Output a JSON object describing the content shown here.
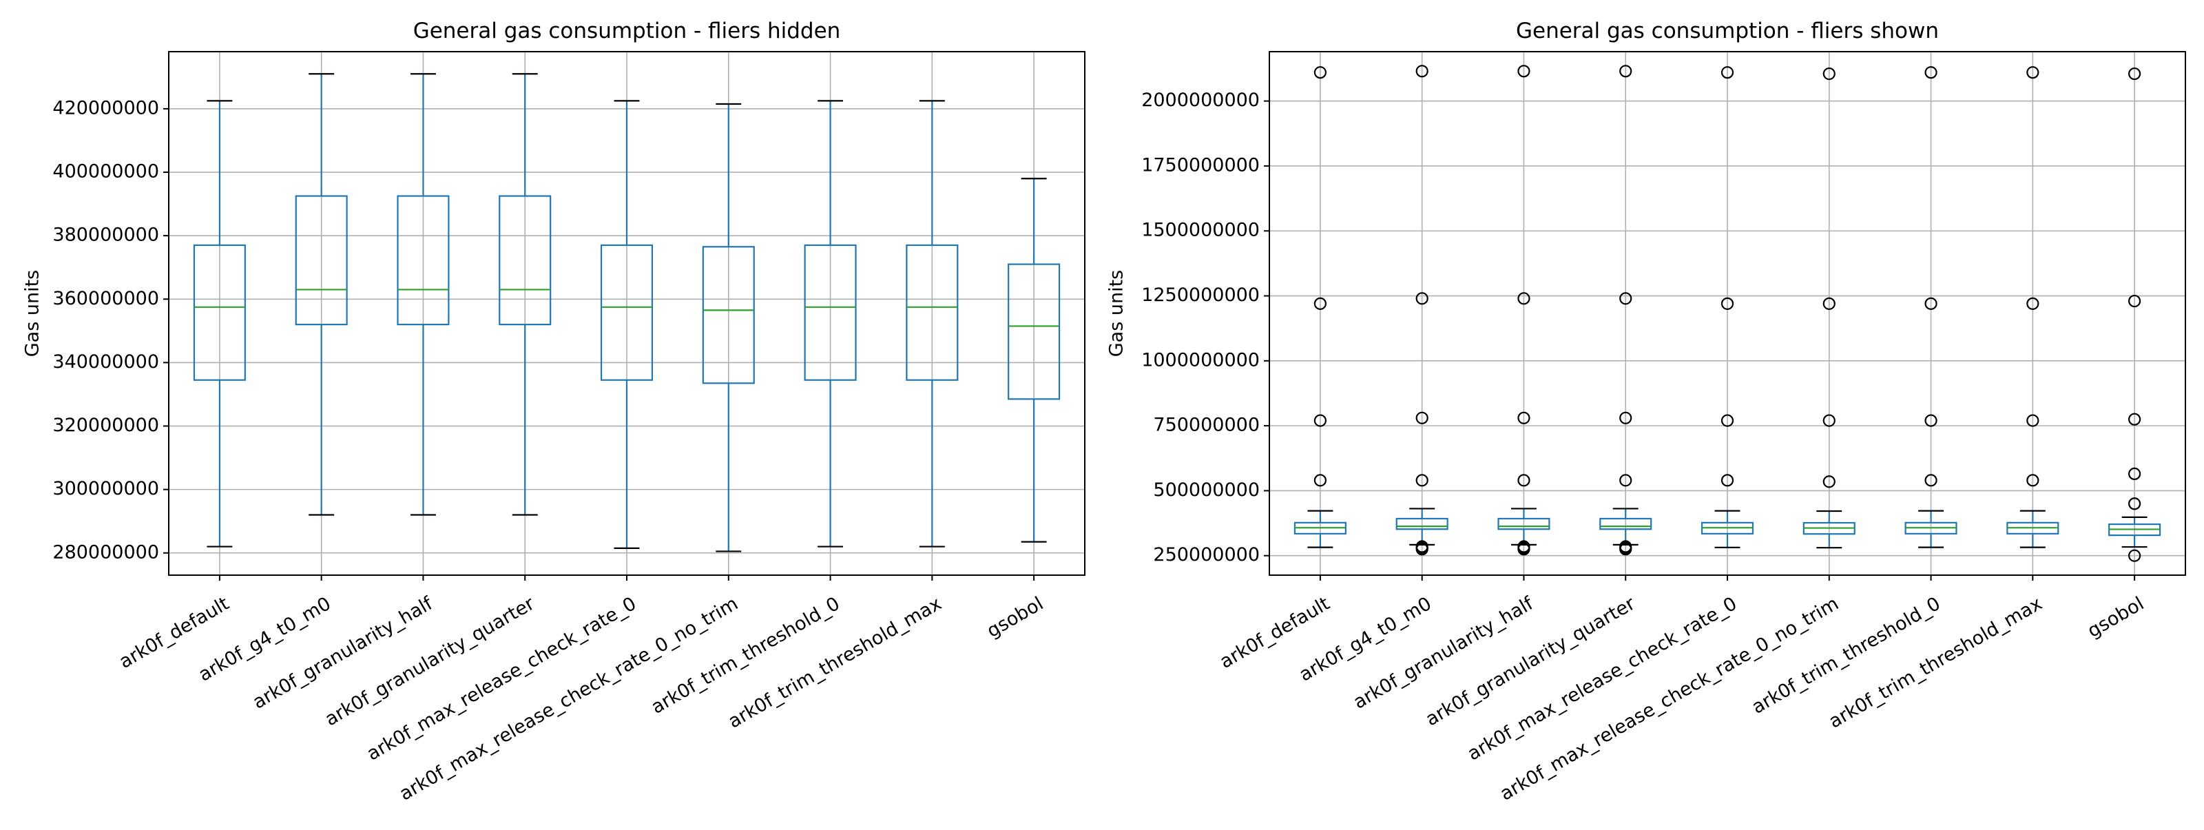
{
  "colors": {
    "box": "#1f77b4",
    "median": "#2ca02c",
    "whisker_cap": "#000000",
    "grid": "#b0b0b0",
    "axes": "#000000"
  },
  "chart_data": [
    {
      "type": "boxplot",
      "title": "General gas consumption - fliers hidden",
      "xlabel": "",
      "ylabel": "Gas units",
      "grid": true,
      "fliers_shown": false,
      "ylim": [
        273000000,
        438000000
      ],
      "yticks": [
        280000000,
        300000000,
        320000000,
        340000000,
        360000000,
        380000000,
        400000000,
        420000000
      ],
      "ytick_labels": [
        "280000000",
        "300000000",
        "320000000",
        "340000000",
        "360000000",
        "380000000",
        "400000000",
        "420000000"
      ],
      "categories": [
        "ark0f_default",
        "ark0f_g4_t0_m0",
        "ark0f_granularity_half",
        "ark0f_granularity_quarter",
        "ark0f_max_release_check_rate_0",
        "ark0f_max_release_check_rate_0_no_trim",
        "ark0f_trim_threshold_0",
        "ark0f_trim_threshold_max",
        "gsobol"
      ],
      "boxes": [
        {
          "whislo": 282000000,
          "q1": 334500000,
          "med": 357500000,
          "q3": 377000000,
          "whishi": 422500000,
          "fliers": []
        },
        {
          "whislo": 292000000,
          "q1": 352000000,
          "med": 363000000,
          "q3": 392500000,
          "whishi": 431000000,
          "fliers": []
        },
        {
          "whislo": 292000000,
          "q1": 352000000,
          "med": 363000000,
          "q3": 392500000,
          "whishi": 431000000,
          "fliers": []
        },
        {
          "whislo": 292000000,
          "q1": 352000000,
          "med": 363000000,
          "q3": 392500000,
          "whishi": 431000000,
          "fliers": []
        },
        {
          "whislo": 281500000,
          "q1": 334500000,
          "med": 357500000,
          "q3": 377000000,
          "whishi": 422500000,
          "fliers": []
        },
        {
          "whislo": 280500000,
          "q1": 333500000,
          "med": 356500000,
          "q3": 376500000,
          "whishi": 421500000,
          "fliers": []
        },
        {
          "whislo": 282000000,
          "q1": 334500000,
          "med": 357500000,
          "q3": 377000000,
          "whishi": 422500000,
          "fliers": []
        },
        {
          "whislo": 282000000,
          "q1": 334500000,
          "med": 357500000,
          "q3": 377000000,
          "whishi": 422500000,
          "fliers": []
        },
        {
          "whislo": 283500000,
          "q1": 328500000,
          "med": 351500000,
          "q3": 371000000,
          "whishi": 398000000,
          "fliers": []
        }
      ]
    },
    {
      "type": "boxplot",
      "title": "General gas consumption - fliers shown",
      "xlabel": "",
      "ylabel": "Gas units",
      "grid": true,
      "fliers_shown": true,
      "ylim": [
        175000000,
        2190000000
      ],
      "yticks": [
        250000000,
        500000000,
        750000000,
        1000000000,
        1250000000,
        1500000000,
        1750000000,
        2000000000
      ],
      "ytick_labels": [
        "250000000",
        "500000000",
        "750000000",
        "1000000000",
        "1250000000",
        "1500000000",
        "1750000000",
        "2000000000"
      ],
      "categories": [
        "ark0f_default",
        "ark0f_g4_t0_m0",
        "ark0f_granularity_half",
        "ark0f_granularity_quarter",
        "ark0f_max_release_check_rate_0",
        "ark0f_max_release_check_rate_0_no_trim",
        "ark0f_trim_threshold_0",
        "ark0f_trim_threshold_max",
        "gsobol"
      ],
      "boxes": [
        {
          "whislo": 282000000,
          "q1": 334500000,
          "med": 357500000,
          "q3": 377000000,
          "whishi": 422500000,
          "fliers": [
            540000000,
            770000000,
            1220000000,
            2110000000
          ]
        },
        {
          "whislo": 292000000,
          "q1": 352000000,
          "med": 363000000,
          "q3": 392500000,
          "whishi": 431000000,
          "fliers": [
            275000000,
            280000000,
            285000000,
            540000000,
            780000000,
            1240000000,
            2115000000
          ]
        },
        {
          "whislo": 292000000,
          "q1": 352000000,
          "med": 363000000,
          "q3": 392500000,
          "whishi": 431000000,
          "fliers": [
            275000000,
            280000000,
            285000000,
            540000000,
            780000000,
            1240000000,
            2115000000
          ]
        },
        {
          "whislo": 292000000,
          "q1": 352000000,
          "med": 363000000,
          "q3": 392500000,
          "whishi": 431000000,
          "fliers": [
            275000000,
            280000000,
            285000000,
            540000000,
            780000000,
            1240000000,
            2115000000
          ]
        },
        {
          "whislo": 281500000,
          "q1": 334500000,
          "med": 357500000,
          "q3": 377000000,
          "whishi": 422500000,
          "fliers": [
            540000000,
            770000000,
            1220000000,
            2110000000
          ]
        },
        {
          "whislo": 280500000,
          "q1": 333500000,
          "med": 356500000,
          "q3": 376500000,
          "whishi": 421500000,
          "fliers": [
            535000000,
            770000000,
            1220000000,
            2105000000
          ]
        },
        {
          "whislo": 282000000,
          "q1": 334500000,
          "med": 357500000,
          "q3": 377000000,
          "whishi": 422500000,
          "fliers": [
            540000000,
            770000000,
            1220000000,
            2110000000
          ]
        },
        {
          "whislo": 282000000,
          "q1": 334500000,
          "med": 357500000,
          "q3": 377000000,
          "whishi": 422500000,
          "fliers": [
            540000000,
            770000000,
            1220000000,
            2110000000
          ]
        },
        {
          "whislo": 283500000,
          "q1": 328500000,
          "med": 351500000,
          "q3": 371000000,
          "whishi": 398000000,
          "fliers": [
            250000000,
            450000000,
            565000000,
            775000000,
            1230000000,
            2105000000
          ]
        }
      ]
    }
  ]
}
